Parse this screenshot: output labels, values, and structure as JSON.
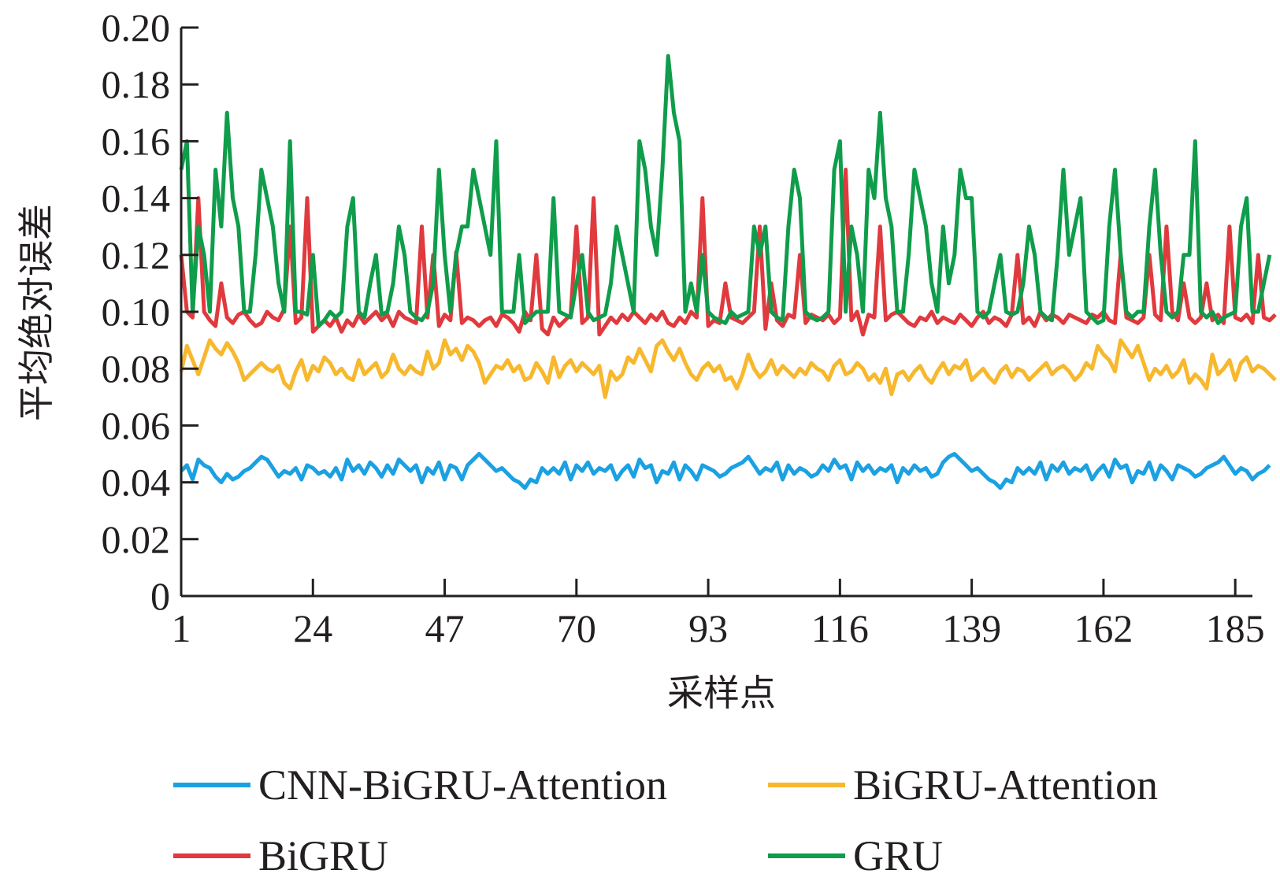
{
  "chart_data": {
    "type": "line",
    "xlabel": "采样点",
    "ylabel": "平均绝对误差",
    "xlim": [
      1,
      188
    ],
    "ylim": [
      0,
      0.2
    ],
    "x_ticks": [
      "1",
      "24",
      "47",
      "70",
      "93",
      "116",
      "139",
      "162",
      "185"
    ],
    "x_tick_values": [
      1,
      24,
      47,
      70,
      93,
      116,
      139,
      162,
      185
    ],
    "y_ticks": [
      "0",
      "0.02",
      "0.04",
      "0.06",
      "0.08",
      "0.10",
      "0.12",
      "0.14",
      "0.16",
      "0.18",
      "0.20"
    ],
    "y_tick_values": [
      0,
      0.02,
      0.04,
      0.06,
      0.08,
      0.1,
      0.12,
      0.14,
      0.16,
      0.18,
      0.2
    ],
    "legend_position": "bottom",
    "series": [
      {
        "name": "CNN-BiGRU-Attention",
        "color": "#1ba1e2",
        "values": [
          0.044,
          0.046,
          0.041,
          0.048,
          0.046,
          0.045,
          0.042,
          0.04,
          0.043,
          0.041,
          0.042,
          0.044,
          0.045,
          0.047,
          0.049,
          0.048,
          0.045,
          0.042,
          0.044,
          0.043,
          0.045,
          0.041,
          0.046,
          0.045,
          0.043,
          0.044,
          0.042,
          0.045,
          0.041,
          0.048,
          0.044,
          0.046,
          0.043,
          0.047,
          0.045,
          0.042,
          0.046,
          0.043,
          0.048,
          0.046,
          0.044,
          0.046,
          0.04,
          0.045,
          0.043,
          0.047,
          0.041,
          0.046,
          0.045,
          0.041,
          0.046,
          0.048,
          0.05,
          0.048,
          0.046,
          0.044,
          0.045,
          0.043,
          0.041,
          0.04,
          0.038,
          0.041,
          0.04,
          0.045,
          0.043,
          0.045,
          0.043,
          0.047,
          0.041,
          0.046,
          0.044,
          0.047,
          0.043,
          0.045,
          0.044,
          0.046,
          0.041,
          0.044,
          0.046,
          0.042,
          0.048,
          0.045,
          0.046,
          0.04,
          0.044,
          0.043,
          0.047,
          0.041,
          0.046,
          0.044,
          0.041,
          0.046,
          0.045,
          0.044,
          0.042,
          0.043,
          0.045,
          0.046,
          0.047,
          0.049,
          0.046,
          0.043,
          0.045,
          0.044,
          0.047,
          0.041,
          0.046,
          0.043,
          0.045,
          0.044,
          0.042,
          0.043,
          0.046,
          0.044,
          0.048,
          0.045,
          0.046,
          0.041,
          0.047,
          0.044,
          0.046,
          0.043,
          0.045,
          0.044,
          0.046,
          0.04,
          0.045,
          0.043,
          0.046,
          0.044,
          0.045,
          0.042,
          0.043,
          0.047,
          0.049,
          0.05,
          0.048,
          0.046,
          0.044,
          0.045,
          0.043,
          0.041,
          0.04,
          0.038,
          0.041,
          0.04,
          0.045,
          0.043,
          0.045,
          0.043,
          0.047,
          0.041,
          0.046,
          0.044,
          0.047,
          0.043,
          0.045,
          0.044,
          0.046,
          0.041,
          0.044,
          0.046,
          0.042,
          0.048,
          0.045,
          0.046,
          0.04,
          0.044,
          0.043,
          0.047,
          0.041,
          0.046,
          0.044,
          0.041,
          0.046,
          0.045,
          0.044,
          0.042,
          0.043,
          0.045,
          0.046,
          0.047,
          0.049,
          0.046,
          0.043,
          0.045,
          0.044,
          0.041,
          0.043,
          0.044,
          0.046
        ]
      },
      {
        "name": "BiGRU-Attention",
        "color": "#f7b82d",
        "values": [
          0.079,
          0.088,
          0.083,
          0.078,
          0.084,
          0.09,
          0.087,
          0.085,
          0.089,
          0.086,
          0.082,
          0.076,
          0.078,
          0.08,
          0.082,
          0.08,
          0.079,
          0.081,
          0.075,
          0.073,
          0.079,
          0.083,
          0.076,
          0.081,
          0.079,
          0.084,
          0.082,
          0.078,
          0.08,
          0.077,
          0.076,
          0.083,
          0.078,
          0.08,
          0.082,
          0.077,
          0.079,
          0.085,
          0.08,
          0.078,
          0.081,
          0.079,
          0.078,
          0.086,
          0.08,
          0.082,
          0.09,
          0.085,
          0.087,
          0.083,
          0.088,
          0.086,
          0.082,
          0.075,
          0.078,
          0.081,
          0.08,
          0.083,
          0.079,
          0.081,
          0.076,
          0.077,
          0.082,
          0.079,
          0.075,
          0.084,
          0.077,
          0.081,
          0.083,
          0.079,
          0.082,
          0.08,
          0.078,
          0.081,
          0.07,
          0.079,
          0.076,
          0.078,
          0.084,
          0.082,
          0.087,
          0.083,
          0.079,
          0.088,
          0.09,
          0.086,
          0.083,
          0.087,
          0.082,
          0.078,
          0.076,
          0.08,
          0.082,
          0.079,
          0.081,
          0.076,
          0.077,
          0.073,
          0.078,
          0.085,
          0.08,
          0.077,
          0.079,
          0.083,
          0.078,
          0.081,
          0.079,
          0.077,
          0.08,
          0.078,
          0.082,
          0.08,
          0.079,
          0.076,
          0.081,
          0.083,
          0.078,
          0.079,
          0.082,
          0.08,
          0.076,
          0.078,
          0.075,
          0.08,
          0.071,
          0.078,
          0.079,
          0.076,
          0.079,
          0.081,
          0.077,
          0.075,
          0.079,
          0.082,
          0.078,
          0.081,
          0.08,
          0.083,
          0.076,
          0.078,
          0.08,
          0.077,
          0.075,
          0.079,
          0.081,
          0.077,
          0.08,
          0.079,
          0.076,
          0.078,
          0.08,
          0.082,
          0.078,
          0.08,
          0.081,
          0.079,
          0.076,
          0.078,
          0.082,
          0.08,
          0.088,
          0.085,
          0.083,
          0.079,
          0.09,
          0.087,
          0.084,
          0.088,
          0.082,
          0.076,
          0.08,
          0.078,
          0.081,
          0.077,
          0.079,
          0.083,
          0.075,
          0.078,
          0.076,
          0.073,
          0.085,
          0.078,
          0.08,
          0.083,
          0.076,
          0.082,
          0.084,
          0.079,
          0.081,
          0.08,
          0.078,
          0.076
        ]
      },
      {
        "name": "BiGRU",
        "color": "#e03a3e",
        "values": [
          0.12,
          0.1,
          0.098,
          0.14,
          0.1,
          0.097,
          0.095,
          0.11,
          0.098,
          0.096,
          0.099,
          0.1,
          0.097,
          0.095,
          0.096,
          0.1,
          0.098,
          0.097,
          0.101,
          0.13,
          0.096,
          0.098,
          0.14,
          0.093,
          0.095,
          0.097,
          0.095,
          0.098,
          0.093,
          0.097,
          0.095,
          0.099,
          0.096,
          0.098,
          0.1,
          0.097,
          0.099,
          0.095,
          0.1,
          0.098,
          0.097,
          0.096,
          0.13,
          0.098,
          0.12,
          0.095,
          0.099,
          0.097,
          0.121,
          0.096,
          0.098,
          0.097,
          0.095,
          0.097,
          0.098,
          0.095,
          0.099,
          0.098,
          0.096,
          0.093,
          0.1,
          0.097,
          0.12,
          0.094,
          0.092,
          0.098,
          0.095,
          0.097,
          0.099,
          0.13,
          0.096,
          0.098,
          0.14,
          0.092,
          0.095,
          0.098,
          0.096,
          0.099,
          0.097,
          0.1,
          0.098,
          0.096,
          0.099,
          0.097,
          0.1,
          0.096,
          0.095,
          0.098,
          0.096,
          0.1,
          0.098,
          0.14,
          0.095,
          0.097,
          0.096,
          0.11,
          0.098,
          0.097,
          0.096,
          0.098,
          0.1,
          0.13,
          0.094,
          0.11,
          0.097,
          0.095,
          0.099,
          0.098,
          0.12,
          0.096,
          0.099,
          0.098,
          0.097,
          0.099,
          0.096,
          0.098,
          0.15,
          0.097,
          0.1,
          0.092,
          0.099,
          0.098,
          0.13,
          0.097,
          0.099,
          0.1,
          0.098,
          0.096,
          0.095,
          0.098,
          0.097,
          0.1,
          0.096,
          0.098,
          0.097,
          0.096,
          0.099,
          0.097,
          0.095,
          0.098,
          0.1,
          0.096,
          0.098,
          0.097,
          0.095,
          0.099,
          0.12,
          0.096,
          0.098,
          0.095,
          0.1,
          0.097,
          0.099,
          0.098,
          0.096,
          0.099,
          0.098,
          0.097,
          0.096,
          0.099,
          0.098,
          0.1,
          0.097,
          0.096,
          0.12,
          0.098,
          0.097,
          0.096,
          0.098,
          0.12,
          0.099,
          0.097,
          0.13,
          0.1,
          0.097,
          0.11,
          0.098,
          0.096,
          0.098,
          0.11,
          0.097,
          0.099,
          0.096,
          0.13,
          0.098,
          0.097,
          0.099,
          0.096,
          0.12,
          0.098,
          0.097,
          0.099
        ]
      },
      {
        "name": "GRU",
        "color": "#0f9d4b",
        "values": [
          0.15,
          0.16,
          0.1,
          0.13,
          0.12,
          0.1,
          0.15,
          0.13,
          0.17,
          0.14,
          0.13,
          0.1,
          0.1,
          0.12,
          0.15,
          0.14,
          0.13,
          0.11,
          0.1,
          0.16,
          0.1,
          0.1,
          0.099,
          0.12,
          0.095,
          0.097,
          0.1,
          0.098,
          0.1,
          0.13,
          0.14,
          0.1,
          0.098,
          0.11,
          0.12,
          0.099,
          0.1,
          0.11,
          0.13,
          0.12,
          0.1,
          0.098,
          0.097,
          0.1,
          0.11,
          0.15,
          0.12,
          0.1,
          0.12,
          0.13,
          0.13,
          0.15,
          0.14,
          0.13,
          0.12,
          0.16,
          0.1,
          0.1,
          0.1,
          0.12,
          0.096,
          0.098,
          0.1,
          0.1,
          0.1,
          0.14,
          0.1,
          0.099,
          0.098,
          0.11,
          0.12,
          0.1,
          0.097,
          0.098,
          0.099,
          0.11,
          0.13,
          0.12,
          0.11,
          0.1,
          0.16,
          0.15,
          0.13,
          0.12,
          0.15,
          0.19,
          0.17,
          0.16,
          0.1,
          0.11,
          0.1,
          0.12,
          0.1,
          0.098,
          0.097,
          0.096,
          0.1,
          0.098,
          0.099,
          0.1,
          0.13,
          0.12,
          0.13,
          0.1,
          0.098,
          0.097,
          0.13,
          0.15,
          0.14,
          0.1,
          0.098,
          0.097,
          0.098,
          0.1,
          0.15,
          0.16,
          0.1,
          0.13,
          0.12,
          0.1,
          0.15,
          0.14,
          0.17,
          0.14,
          0.13,
          0.1,
          0.1,
          0.12,
          0.15,
          0.14,
          0.13,
          0.11,
          0.1,
          0.13,
          0.11,
          0.12,
          0.15,
          0.14,
          0.14,
          0.1,
          0.098,
          0.1,
          0.11,
          0.12,
          0.1,
          0.099,
          0.1,
          0.11,
          0.13,
          0.12,
          0.1,
          0.098,
          0.097,
          0.12,
          0.15,
          0.12,
          0.13,
          0.14,
          0.1,
          0.098,
          0.096,
          0.097,
          0.13,
          0.15,
          0.12,
          0.1,
          0.098,
          0.1,
          0.1,
          0.13,
          0.15,
          0.12,
          0.1,
          0.098,
          0.1,
          0.12,
          0.12,
          0.16,
          0.1,
          0.098,
          0.1,
          0.096,
          0.098,
          0.099,
          0.1,
          0.13,
          0.14,
          0.1,
          0.1,
          0.11,
          0.12
        ]
      }
    ]
  }
}
